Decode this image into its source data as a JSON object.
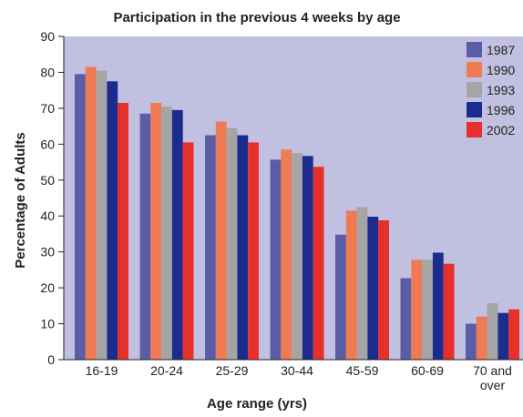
{
  "chart_data": {
    "type": "bar",
    "title": "Participation in the previous 4 weeks by age",
    "xlabel": "Age range (yrs)",
    "ylabel": "Percentage of Adults",
    "ylim": [
      0,
      90
    ],
    "yticks": [
      0,
      10,
      20,
      30,
      40,
      50,
      60,
      70,
      80,
      90
    ],
    "grid": false,
    "legend_position": "top-right",
    "plot_background": "#c2c0e0",
    "categories": [
      "16-19",
      "20-24",
      "25-29",
      "30-44",
      "45-59",
      "60-69",
      "70 and over"
    ],
    "category_lines": [
      [
        "16-19"
      ],
      [
        "20-24"
      ],
      [
        "25-29"
      ],
      [
        "30-44"
      ],
      [
        "45-59"
      ],
      [
        "60-69"
      ],
      [
        "70 and",
        "over"
      ]
    ],
    "series": [
      {
        "name": "1987",
        "color": "#5b5ea6",
        "values": [
          79.5,
          68.5,
          62.5,
          55.7,
          34.8,
          22.7,
          10.0
        ]
      },
      {
        "name": "1990",
        "color": "#ef7b55",
        "values": [
          81.5,
          71.5,
          66.3,
          58.5,
          41.5,
          27.8,
          12.0
        ]
      },
      {
        "name": "1993",
        "color": "#a5a5a5",
        "values": [
          80.5,
          70.5,
          64.5,
          57.5,
          42.5,
          27.8,
          15.7
        ]
      },
      {
        "name": "1996",
        "color": "#1c2c8e",
        "values": [
          77.5,
          69.5,
          62.5,
          56.7,
          39.8,
          29.8,
          13.0
        ]
      },
      {
        "name": "2002",
        "color": "#e8302a",
        "values": [
          71.5,
          60.5,
          60.5,
          53.7,
          38.8,
          26.7,
          14.0
        ]
      }
    ]
  }
}
